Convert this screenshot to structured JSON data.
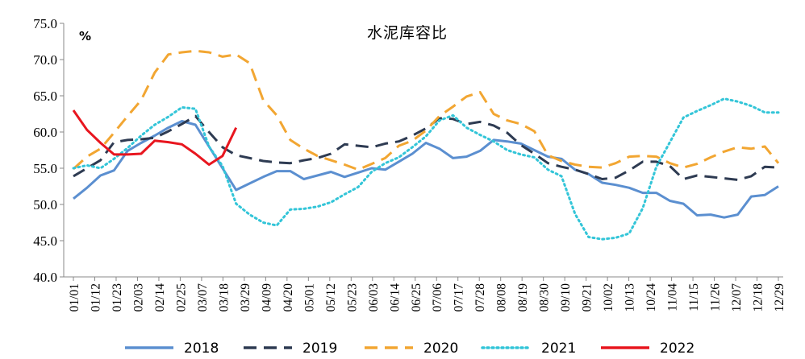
{
  "chart_data": {
    "type": "line",
    "title": "水泥库容比",
    "unit": "%",
    "ylim": [
      40.0,
      75.0
    ],
    "yticks": [
      "40.0",
      "45.0",
      "50.0",
      "55.0",
      "60.0",
      "65.0",
      "70.0",
      "75.0"
    ],
    "x_tick_labels": [
      "01/01",
      "01/12",
      "01/23",
      "02/03",
      "02/14",
      "02/25",
      "03/07",
      "03/18",
      "03/29",
      "04/09",
      "04/20",
      "05/01",
      "05/12",
      "05/23",
      "06/03",
      "06/14",
      "06/25",
      "07/06",
      "07/17",
      "07/28",
      "08/08",
      "08/19",
      "08/30",
      "09/10",
      "09/21",
      "10/02",
      "10/13",
      "10/24",
      "11/04",
      "11/15",
      "11/26",
      "12/07",
      "12/18",
      "12/29"
    ],
    "grid": false,
    "legend_position": "bottom",
    "series": [
      {
        "name": "2018",
        "color": "#5B8FD0",
        "style": "solid",
        "values": [
          50.8,
          52.3,
          54.0,
          54.7,
          57.4,
          58.5,
          59.5,
          60.6,
          61.5,
          61.0,
          58.0,
          55.0,
          52.0,
          52.9,
          53.8,
          54.6,
          54.6,
          53.5,
          54.0,
          54.5,
          53.8,
          54.4,
          55.0,
          54.8,
          55.9,
          57.0,
          58.5,
          57.7,
          56.4,
          56.6,
          57.4,
          58.9,
          58.7,
          58.4,
          57.5,
          56.6,
          56.3,
          54.8,
          54.2,
          53.0,
          52.7,
          52.3,
          51.6,
          51.6,
          50.5,
          50.1,
          48.5,
          48.6,
          48.2,
          48.6,
          51.1,
          51.3,
          52.5
        ]
      },
      {
        "name": "2019",
        "color": "#2E3B52",
        "style": "dash",
        "values": [
          53.9,
          55.0,
          56.1,
          58.6,
          58.9,
          59.0,
          59.2,
          60.1,
          61.1,
          62.2,
          60.0,
          57.9,
          56.8,
          56.4,
          56.0,
          55.8,
          55.7,
          56.1,
          56.4,
          57.0,
          58.3,
          58.1,
          57.9,
          58.4,
          58.7,
          59.5,
          60.5,
          61.9,
          61.8,
          61.1,
          61.4,
          60.9,
          59.9,
          58.2,
          57.0,
          55.7,
          55.2,
          54.8,
          54.2,
          53.5,
          53.7,
          54.7,
          55.9,
          55.9,
          55.3,
          53.5,
          54.0,
          53.8,
          53.6,
          53.4,
          53.9,
          55.2,
          55.1
        ]
      },
      {
        "name": "2020",
        "color": "#F2A632",
        "style": "dash",
        "values": [
          54.9,
          56.6,
          57.7,
          59.9,
          62.2,
          64.4,
          68.2,
          70.7,
          71.0,
          71.2,
          71.0,
          70.4,
          70.7,
          69.5,
          64.4,
          62.3,
          58.9,
          57.7,
          56.7,
          56.1,
          55.5,
          54.8,
          55.6,
          56.4,
          58.1,
          58.8,
          60.2,
          62.2,
          63.5,
          64.9,
          65.5,
          62.5,
          61.6,
          61.1,
          60.1,
          56.8,
          56.0,
          55.5,
          55.2,
          55.1,
          55.7,
          56.6,
          56.7,
          56.6,
          55.7,
          55.1,
          55.6,
          56.5,
          57.3,
          57.9,
          57.7,
          58.0,
          55.7
        ]
      },
      {
        "name": "2021",
        "color": "#33C5D8",
        "style": "dot",
        "values": [
          55.0,
          55.4,
          55.0,
          56.3,
          57.8,
          59.5,
          61.0,
          62.1,
          63.4,
          63.2,
          58.0,
          55.3,
          50.1,
          48.6,
          47.5,
          47.1,
          49.3,
          49.4,
          49.7,
          50.3,
          51.4,
          52.4,
          54.5,
          55.7,
          56.5,
          57.9,
          59.4,
          61.6,
          62.3,
          60.6,
          59.6,
          58.7,
          57.5,
          56.9,
          56.5,
          54.8,
          53.9,
          48.7,
          45.5,
          45.2,
          45.4,
          46.0,
          49.5,
          55.2,
          58.6,
          62.0,
          62.9,
          63.7,
          64.6,
          64.2,
          63.6,
          62.7,
          62.7
        ]
      },
      {
        "name": "2022",
        "color": "#E8161F",
        "style": "solid",
        "values": [
          63.0,
          60.3,
          58.5,
          56.9,
          56.9,
          57.0,
          58.8,
          58.6,
          58.3,
          57.0,
          55.5,
          56.7,
          60.6
        ]
      }
    ]
  },
  "legend": {
    "items": [
      {
        "label": "2018"
      },
      {
        "label": "2019"
      },
      {
        "label": "2020"
      },
      {
        "label": "2021"
      },
      {
        "label": "2022"
      }
    ]
  }
}
